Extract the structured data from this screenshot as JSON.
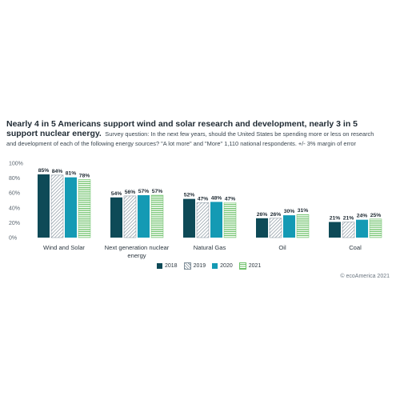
{
  "headline": {
    "title": "Nearly 4 in 5 Americans support wind and solar research and development, nearly 3 in 5 support nuclear energy.",
    "subtitle": "Survey question: In the next few years, should the United States be spending more or less on research and development of each of the following energy sources? \"A lot more\" and \"More\" 1,110 national respondents. +/- 3% margin of error"
  },
  "source": "© ecoAmerica 2021",
  "colors": {
    "s2018": "#0e4a57",
    "s2019": "#7f8e99",
    "s2020": "#149ab4",
    "s2021": "#6fc26b"
  },
  "chart_data": {
    "type": "bar",
    "categories": [
      "Wind and Solar",
      "Next generation nuclear energy",
      "Natural Gas",
      "Oil",
      "Coal"
    ],
    "series": [
      {
        "name": "2018",
        "values": [
          85,
          54,
          52,
          26,
          21
        ],
        "labels": [
          "85%",
          "54%",
          "52%",
          "26%",
          "21%"
        ]
      },
      {
        "name": "2019",
        "values": [
          84,
          56,
          47,
          26,
          21
        ],
        "labels": [
          "84%",
          "56%",
          "47%",
          "26%",
          "21%"
        ]
      },
      {
        "name": "2020",
        "values": [
          81,
          57,
          48,
          30,
          24
        ],
        "labels": [
          "81%",
          "57%",
          "48%",
          "30%",
          "24%"
        ]
      },
      {
        "name": "2021",
        "values": [
          78,
          57,
          47,
          31,
          25
        ],
        "labels": [
          "78%",
          "57%",
          "47%",
          "31%",
          "25%"
        ]
      }
    ],
    "yticks": [
      "0%",
      "20%",
      "40%",
      "60%",
      "80%",
      "100%"
    ],
    "ylim": [
      0,
      100
    ],
    "legend_position": "bottom-center",
    "grid": false
  }
}
